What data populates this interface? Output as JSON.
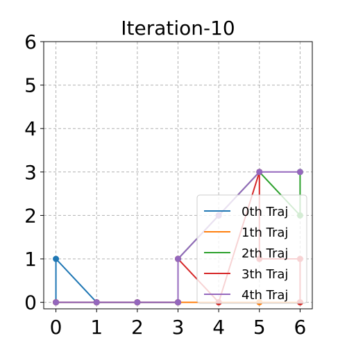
{
  "chart_data": {
    "type": "line",
    "title": "Iteration-10",
    "xlabel": "",
    "ylabel": "",
    "xlim": [
      -0.3,
      6.3
    ],
    "ylim": [
      -0.15,
      6
    ],
    "x_ticks": [
      "0",
      "1",
      "2",
      "3",
      "4",
      "5",
      "6"
    ],
    "y_ticks": [
      "0",
      "1",
      "2",
      "3",
      "4",
      "5",
      "6"
    ],
    "grid": true,
    "legend_position": "lower-right",
    "series": [
      {
        "name": "0th Traj",
        "color": "#1f77b4",
        "points": [
          [
            0,
            0
          ],
          [
            0,
            1
          ],
          [
            1,
            0
          ],
          [
            2,
            0
          ],
          [
            3,
            0
          ]
        ]
      },
      {
        "name": "1th Traj",
        "color": "#ff7f0e",
        "points": [
          [
            0,
            0
          ],
          [
            1,
            0
          ],
          [
            2,
            0
          ],
          [
            3,
            0
          ],
          [
            4,
            0
          ],
          [
            5,
            0
          ],
          [
            6,
            0
          ]
        ]
      },
      {
        "name": "2th Traj",
        "color": "#2ca02c",
        "points": [
          [
            0,
            0
          ],
          [
            1,
            0
          ],
          [
            2,
            0
          ],
          [
            3,
            0
          ],
          [
            3,
            1
          ],
          [
            4,
            2
          ],
          [
            5,
            3
          ],
          [
            6,
            2
          ],
          [
            6,
            3
          ]
        ]
      },
      {
        "name": "3th Traj",
        "color": "#d62728",
        "points": [
          [
            0,
            0
          ],
          [
            1,
            0
          ],
          [
            2,
            0
          ],
          [
            3,
            0
          ],
          [
            3,
            1
          ],
          [
            4,
            0
          ],
          [
            5,
            3
          ],
          [
            5,
            1
          ],
          [
            6,
            1
          ],
          [
            6,
            0
          ]
        ]
      },
      {
        "name": "4th Traj",
        "color": "#9467bd",
        "points": [
          [
            0,
            0
          ],
          [
            1,
            0
          ],
          [
            2,
            0
          ],
          [
            3,
            0
          ],
          [
            3,
            1
          ],
          [
            4,
            2
          ],
          [
            5,
            3
          ],
          [
            6,
            3
          ]
        ]
      }
    ]
  }
}
